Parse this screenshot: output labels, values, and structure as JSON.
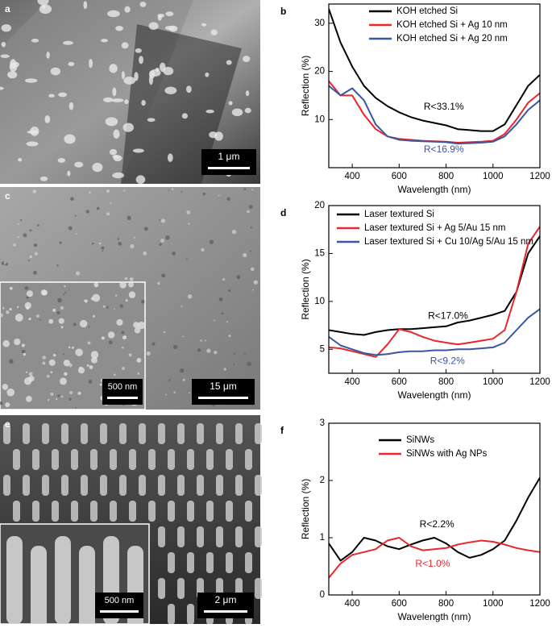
{
  "images": [
    {
      "label": "a",
      "scale_bar": "1 μm"
    },
    {
      "label": "c",
      "scale_bar": "15 μm",
      "inset_scale_bar": "500 nm"
    },
    {
      "label": "e",
      "scale_bar": "2 μm",
      "inset_scale_bar": "500 nm"
    }
  ],
  "chart_data": [
    {
      "type": "line",
      "label": "b",
      "xlabel": "Wavelength (nm)",
      "ylabel": "Reflection (%)",
      "x": [
        300,
        350,
        400,
        450,
        500,
        550,
        600,
        650,
        700,
        750,
        800,
        850,
        900,
        950,
        1000,
        1050,
        1100,
        1150,
        1200
      ],
      "xlim": [
        300,
        1200
      ],
      "xticks": [
        400,
        600,
        800,
        1000,
        1200
      ],
      "ylim": [
        0,
        34
      ],
      "yticks": [
        10,
        20,
        30
      ],
      "series": [
        {
          "name": "KOH etched Si",
          "color": "#000000",
          "values": [
            33,
            26,
            21,
            17,
            14.5,
            12.8,
            11.5,
            10.5,
            9.8,
            9.3,
            8.8,
            8.0,
            7.8,
            7.6,
            7.6,
            9,
            13,
            17,
            19.3
          ]
        },
        {
          "name": "KOH etched Si + Ag 10 nm",
          "color": "#e8262b",
          "values": [
            18,
            15,
            15,
            11,
            8,
            6.5,
            6,
            5.8,
            5.6,
            5.5,
            5.4,
            5.2,
            5.3,
            5.4,
            5.6,
            7,
            10,
            13.5,
            15.5
          ]
        },
        {
          "name": "KOH etched Si + Ag 20 nm",
          "color": "#3a55a4",
          "values": [
            17,
            15,
            16.5,
            14,
            9,
            6.5,
            5.8,
            5.6,
            5.5,
            5.4,
            5.3,
            5.0,
            5.1,
            5.2,
            5.4,
            6.5,
            9,
            12,
            14
          ]
        }
      ],
      "annotations": [
        {
          "text": "R<33.1%",
          "color": "#000000"
        },
        {
          "text": "R<16.9%",
          "color": "#3a55a4"
        }
      ]
    },
    {
      "type": "line",
      "label": "d",
      "xlabel": "Wavelength (nm)",
      "ylabel": "Reflection (%)",
      "x": [
        300,
        350,
        400,
        450,
        500,
        550,
        600,
        650,
        700,
        750,
        800,
        850,
        900,
        950,
        1000,
        1050,
        1100,
        1150,
        1200
      ],
      "xlim": [
        300,
        1200
      ],
      "xticks": [
        400,
        600,
        800,
        1000,
        1200
      ],
      "ylim": [
        2.5,
        20
      ],
      "yticks": [
        5,
        10,
        15,
        20
      ],
      "series": [
        {
          "name": "Laser textured Si",
          "color": "#000000",
          "values": [
            7,
            6.8,
            6.6,
            6.5,
            6.8,
            7,
            7.1,
            7.1,
            7.2,
            7.3,
            7.4,
            7.8,
            8,
            8.3,
            8.6,
            9,
            11,
            15,
            16.8
          ]
        },
        {
          "name": "Laser textured Si + Ag 5/Au 15 nm",
          "color": "#e8262b",
          "values": [
            5.2,
            5.1,
            4.8,
            4.5,
            4.2,
            5.5,
            7.1,
            6.8,
            6.3,
            5.9,
            5.7,
            5.5,
            5.7,
            5.9,
            6.1,
            7,
            11,
            16,
            17.8
          ]
        },
        {
          "name": "Laser textured Si + Cu 10/Ag 5/Au 15 nm",
          "color": "#3a55a4",
          "values": [
            6.3,
            5.4,
            5.0,
            4.6,
            4.4,
            4.5,
            4.7,
            4.8,
            4.8,
            4.9,
            4.9,
            5.0,
            5.0,
            5.1,
            5.2,
            5.7,
            7,
            8.3,
            9.2
          ]
        }
      ],
      "annotations": [
        {
          "text": "R<17.0%",
          "color": "#000000"
        },
        {
          "text": "R<9.2%",
          "color": "#3a55a4"
        }
      ]
    },
    {
      "type": "line",
      "label": "f",
      "xlabel": "Wavelength (nm)",
      "ylabel": "Reflection (%)",
      "x": [
        300,
        350,
        400,
        450,
        500,
        550,
        600,
        650,
        700,
        750,
        800,
        850,
        900,
        950,
        1000,
        1050,
        1100,
        1150,
        1200
      ],
      "xlim": [
        300,
        1200
      ],
      "xticks": [
        400,
        600,
        800,
        1000,
        1200
      ],
      "ylim": [
        0,
        3
      ],
      "yticks": [
        0,
        1,
        2,
        3
      ],
      "series": [
        {
          "name": "SiNWs",
          "color": "#000000",
          "values": [
            0.9,
            0.6,
            0.75,
            1.0,
            0.95,
            0.85,
            0.8,
            0.88,
            0.95,
            1.0,
            0.9,
            0.75,
            0.65,
            0.7,
            0.8,
            0.95,
            1.3,
            1.7,
            2.05
          ]
        },
        {
          "name": "SiNWs with Ag NPs",
          "color": "#e8262b",
          "values": [
            0.3,
            0.55,
            0.7,
            0.75,
            0.8,
            0.95,
            1.0,
            0.85,
            0.78,
            0.8,
            0.82,
            0.88,
            0.92,
            0.95,
            0.93,
            0.88,
            0.82,
            0.78,
            0.75
          ]
        }
      ],
      "annotations": [
        {
          "text": "R<2.2%",
          "color": "#000000"
        },
        {
          "text": "R<1.0%",
          "color": "#e8262b"
        }
      ]
    }
  ]
}
